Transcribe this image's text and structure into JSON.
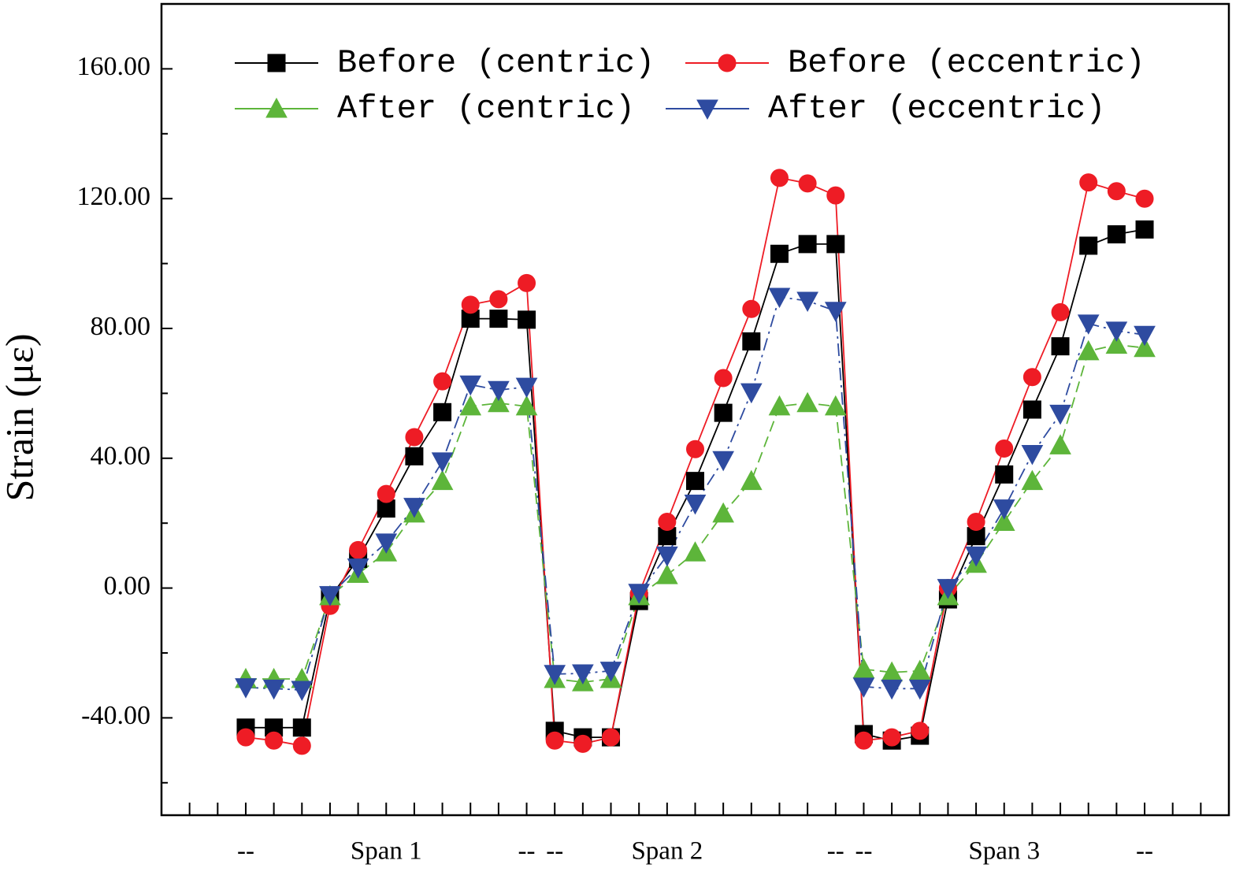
{
  "chart_data": {
    "type": "line",
    "y_label": "Strain (με)",
    "categories": [
      null,
      null,
      "--",
      null,
      null,
      null,
      null,
      "Span 1",
      null,
      null,
      null,
      null,
      "--",
      "--",
      null,
      null,
      null,
      "Span 2",
      null,
      null,
      null,
      null,
      null,
      "--",
      "--",
      null,
      null,
      null,
      null,
      "Span 3",
      null,
      null,
      null,
      null,
      "--",
      null,
      null
    ],
    "ylim": [
      -70,
      180
    ],
    "yticks": [
      {
        "value": -40,
        "label": "-40.00"
      },
      {
        "value": 0,
        "label": "0.00"
      },
      {
        "value": 40,
        "label": "40.00"
      },
      {
        "value": 80,
        "label": "80.00"
      },
      {
        "value": 120,
        "label": "120.00"
      },
      {
        "value": 160,
        "label": "160.00"
      }
    ],
    "legend": "top",
    "series": [
      {
        "name": "Before (centric)",
        "color": "#000000",
        "marker": "square",
        "dash": "solid",
        "values": [
          null,
          null,
          -43,
          -43,
          -43,
          -3,
          9,
          24.5,
          40.6,
          54.2,
          83,
          83,
          82.7,
          -44,
          -46,
          -46,
          -4,
          16,
          33,
          54,
          76,
          103,
          106,
          106,
          -45,
          -47,
          -45.5,
          -3.5,
          16,
          35,
          55,
          74.5,
          105.5,
          109,
          110.5,
          null,
          null
        ]
      },
      {
        "name": "Before (eccentric)",
        "color": "#ee1c25",
        "marker": "circle",
        "dash": "solid",
        "values": [
          null,
          null,
          -46,
          -47,
          -48.6,
          -5.5,
          11.7,
          29,
          46.5,
          63.7,
          87.3,
          89,
          94,
          -47,
          -48,
          -46,
          -1.7,
          20.4,
          42.8,
          64.7,
          86,
          126.4,
          124.7,
          121,
          -47,
          -46,
          -44,
          0,
          20.4,
          43,
          65,
          85,
          125,
          122.3,
          120,
          null,
          null
        ]
      },
      {
        "name": "After (centric)",
        "color": "#5db53a",
        "marker": "triangle-up",
        "dash": "dashed",
        "values": [
          null,
          null,
          -28,
          -28,
          -28,
          -2.5,
          4.4,
          11,
          23,
          33,
          56,
          57,
          56,
          -28,
          -29,
          -28,
          -2.5,
          4,
          11,
          23,
          33,
          56,
          57,
          56,
          -25,
          -26,
          -25.5,
          -2.5,
          7.5,
          20.4,
          33,
          44,
          73,
          75,
          74,
          null,
          null
        ]
      },
      {
        "name": "After (eccentric)",
        "color": "#2e4ba0",
        "marker": "triangle-down",
        "dash": "dashdot",
        "values": [
          null,
          null,
          -30.6,
          -31,
          -31.4,
          -2.2,
          6.3,
          14,
          25,
          39,
          62.7,
          61,
          62,
          -26.5,
          -26.3,
          -25.5,
          -1.5,
          10,
          26,
          39.4,
          60.3,
          89.7,
          88.5,
          85.4,
          -30.4,
          -31,
          -31,
          0,
          10,
          24.5,
          41.3,
          53.7,
          81.5,
          79.3,
          78,
          null,
          null
        ]
      }
    ]
  }
}
